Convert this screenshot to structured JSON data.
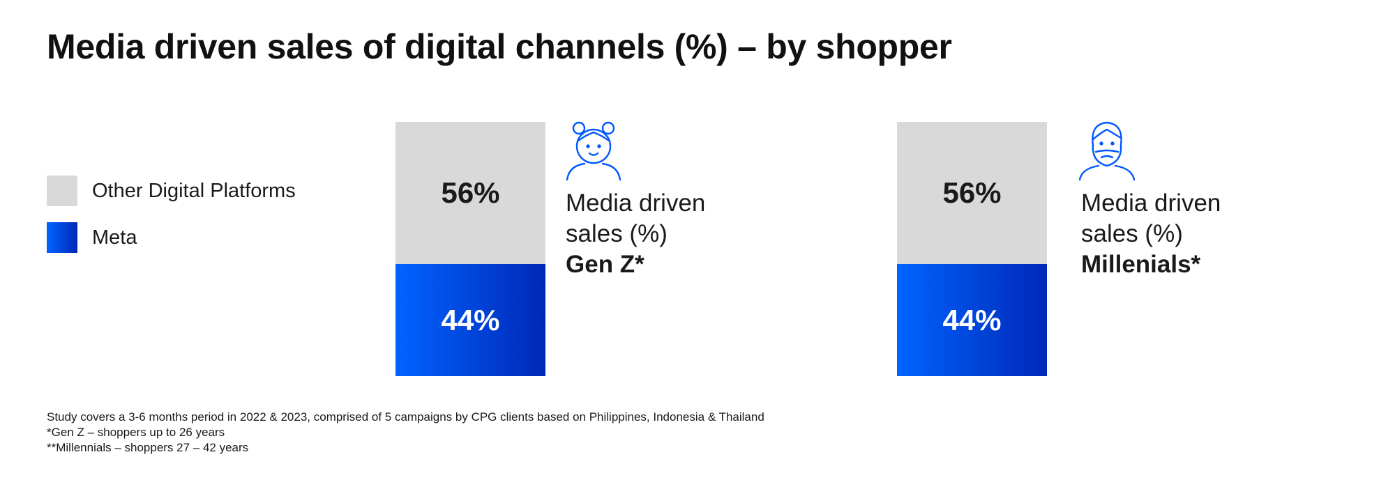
{
  "title": "Media driven sales of digital channels (%) – by shopper",
  "legend": [
    {
      "label": "Other Digital Platforms",
      "color": "#d9d9d9"
    },
    {
      "label": "Meta",
      "color": "#0050e6"
    }
  ],
  "chart_data": [
    {
      "type": "bar",
      "stacked": true,
      "categories": [
        "Gen Z*"
      ],
      "series": [
        {
          "name": "Meta",
          "values": [
            44
          ],
          "labels": [
            "44%"
          ]
        },
        {
          "name": "Other Digital Platforms",
          "values": [
            56
          ],
          "labels": [
            "56%"
          ]
        }
      ],
      "caption": {
        "line1": "Media driven",
        "line2": "sales (%)",
        "group": "Gen Z*"
      },
      "icon": "girl-avatar-icon"
    },
    {
      "type": "bar",
      "stacked": true,
      "categories": [
        "Millenials*"
      ],
      "series": [
        {
          "name": "Meta",
          "values": [
            44
          ],
          "labels": [
            "44%"
          ]
        },
        {
          "name": "Other Digital Platforms",
          "values": [
            56
          ],
          "labels": [
            "56%"
          ]
        }
      ],
      "caption": {
        "line1": "Media driven",
        "line2": "sales (%)",
        "group": "Millenials*"
      },
      "icon": "bearded-man-avatar-icon"
    }
  ],
  "footnotes": [
    "Study covers a 3-6 months period in 2022 & 2023, comprised of 5 campaigns by CPG clients based on Philippines, Indonesia & Thailand",
    "*Gen Z – shoppers up to 26 years",
    "**Millennials – shoppers 27 – 42 years"
  ]
}
